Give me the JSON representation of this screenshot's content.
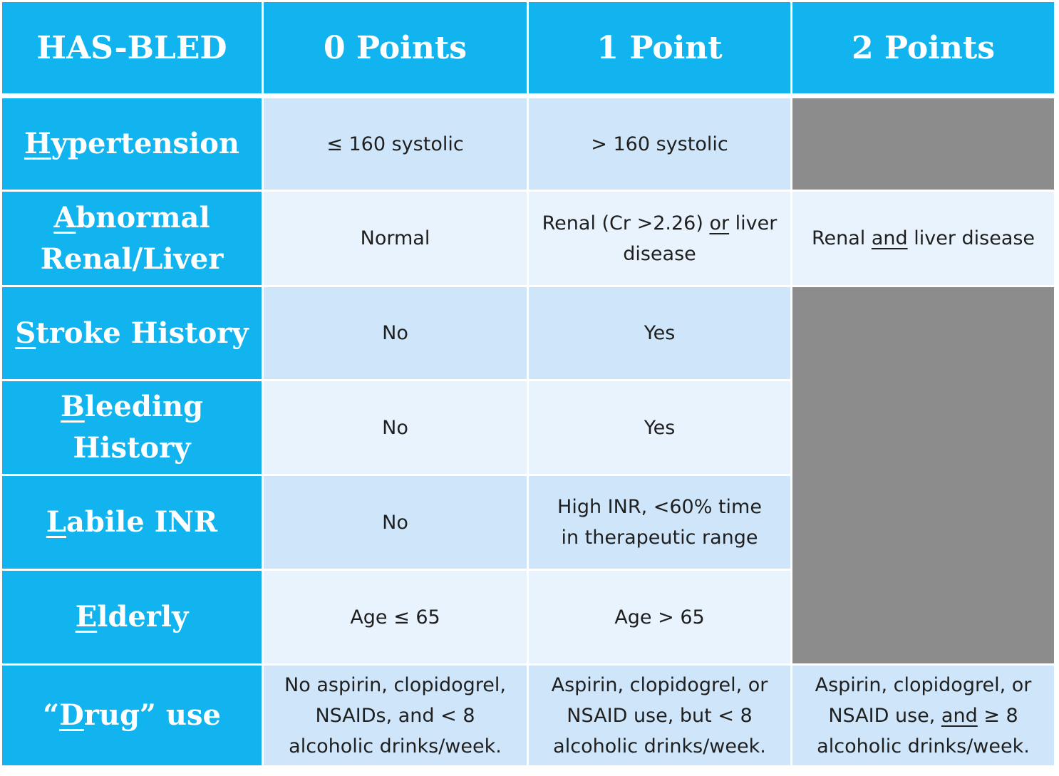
{
  "header": {
    "col0": "HAS-BLED",
    "col1": "0 Points",
    "col2": "1 Point",
    "col3": "2 Points"
  },
  "rows": [
    {
      "label_initial": "H",
      "label_rest": "ypertension",
      "p0": "≤ 160 systolic",
      "p1": "> 160 systolic"
    },
    {
      "label_initial": "A",
      "label_line1_rest": "bnormal",
      "label_line2": "Renal/Liver",
      "p0": "Normal",
      "p1_pre": "Renal (Cr >2.26) ",
      "p1_u": "or",
      "p1_post": " liver disease",
      "p2_pre": "Renal ",
      "p2_u": "and",
      "p2_post": " liver disease"
    },
    {
      "label_initial": "S",
      "label_rest": "troke History",
      "p0": "No",
      "p1": "Yes"
    },
    {
      "label_initial": "B",
      "label_line1_rest": "leeding",
      "label_line2": "History",
      "p0": "No",
      "p1": "Yes"
    },
    {
      "label_initial": "L",
      "label_rest": "abile INR",
      "p0": "No",
      "p1": "High INR, <60% time in therapeutic range"
    },
    {
      "label_initial": "E",
      "label_rest": "lderly",
      "p0": "Age ≤ 65",
      "p1": "Age > 65"
    },
    {
      "label_open": "“",
      "label_initial": "D",
      "label_rest": "rug” use",
      "p0": "No aspirin, clopidogrel, NSAIDs, and < 8 alcoholic drinks/week.",
      "p1": "Aspirin, clopidogrel, or NSAID use, but < 8 alcoholic drinks/week.",
      "p2_pre": "Aspirin, clopidogrel, or NSAID use, ",
      "p2_u": "and",
      "p2_post": " ≥ 8 alcoholic drinks/week."
    }
  ],
  "colors": {
    "header_blue": "#12b4f0",
    "cell_dark": "#cfe6fa",
    "cell_light": "#e8f3fd",
    "empty_gray": "#8c8c8c"
  }
}
